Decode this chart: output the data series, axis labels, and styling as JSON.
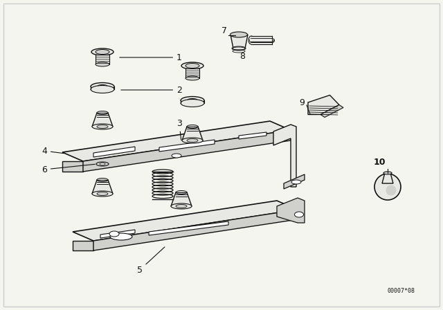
{
  "bg_color": "#f5f5f0",
  "line_color": "#111111",
  "fig_width": 6.4,
  "fig_height": 4.48,
  "dpi": 100,
  "diagram_code": "00007*08",
  "border_color": "#cccccc"
}
